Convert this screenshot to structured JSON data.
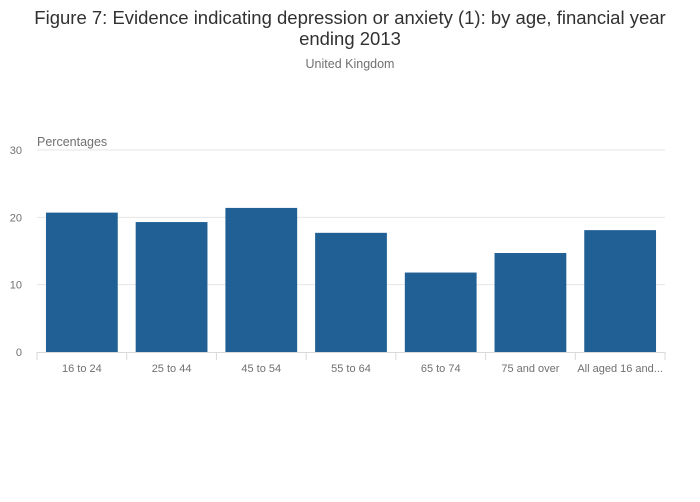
{
  "chart_data": {
    "type": "bar",
    "title": "Figure 7: Evidence indicating depression or anxiety (1): by age, financial year ending 2013",
    "subtitle": "United Kingdom",
    "ylabel": "Percentages",
    "xlabel": "",
    "categories": [
      "16 to 24",
      "25 to 44",
      "45 to 54",
      "55 to 64",
      "65 to 74",
      "75 and over",
      "All aged 16 and..."
    ],
    "values": [
      20.7,
      19.3,
      21.4,
      17.7,
      11.8,
      14.7,
      18.1
    ],
    "ylim": [
      0,
      30
    ],
    "yticks": [
      0,
      10,
      20,
      30
    ],
    "grid": true,
    "legend": "none",
    "colors": {
      "bar": "#206095",
      "grid": "#e6e6e6",
      "axis": "#d9d9d9"
    }
  }
}
